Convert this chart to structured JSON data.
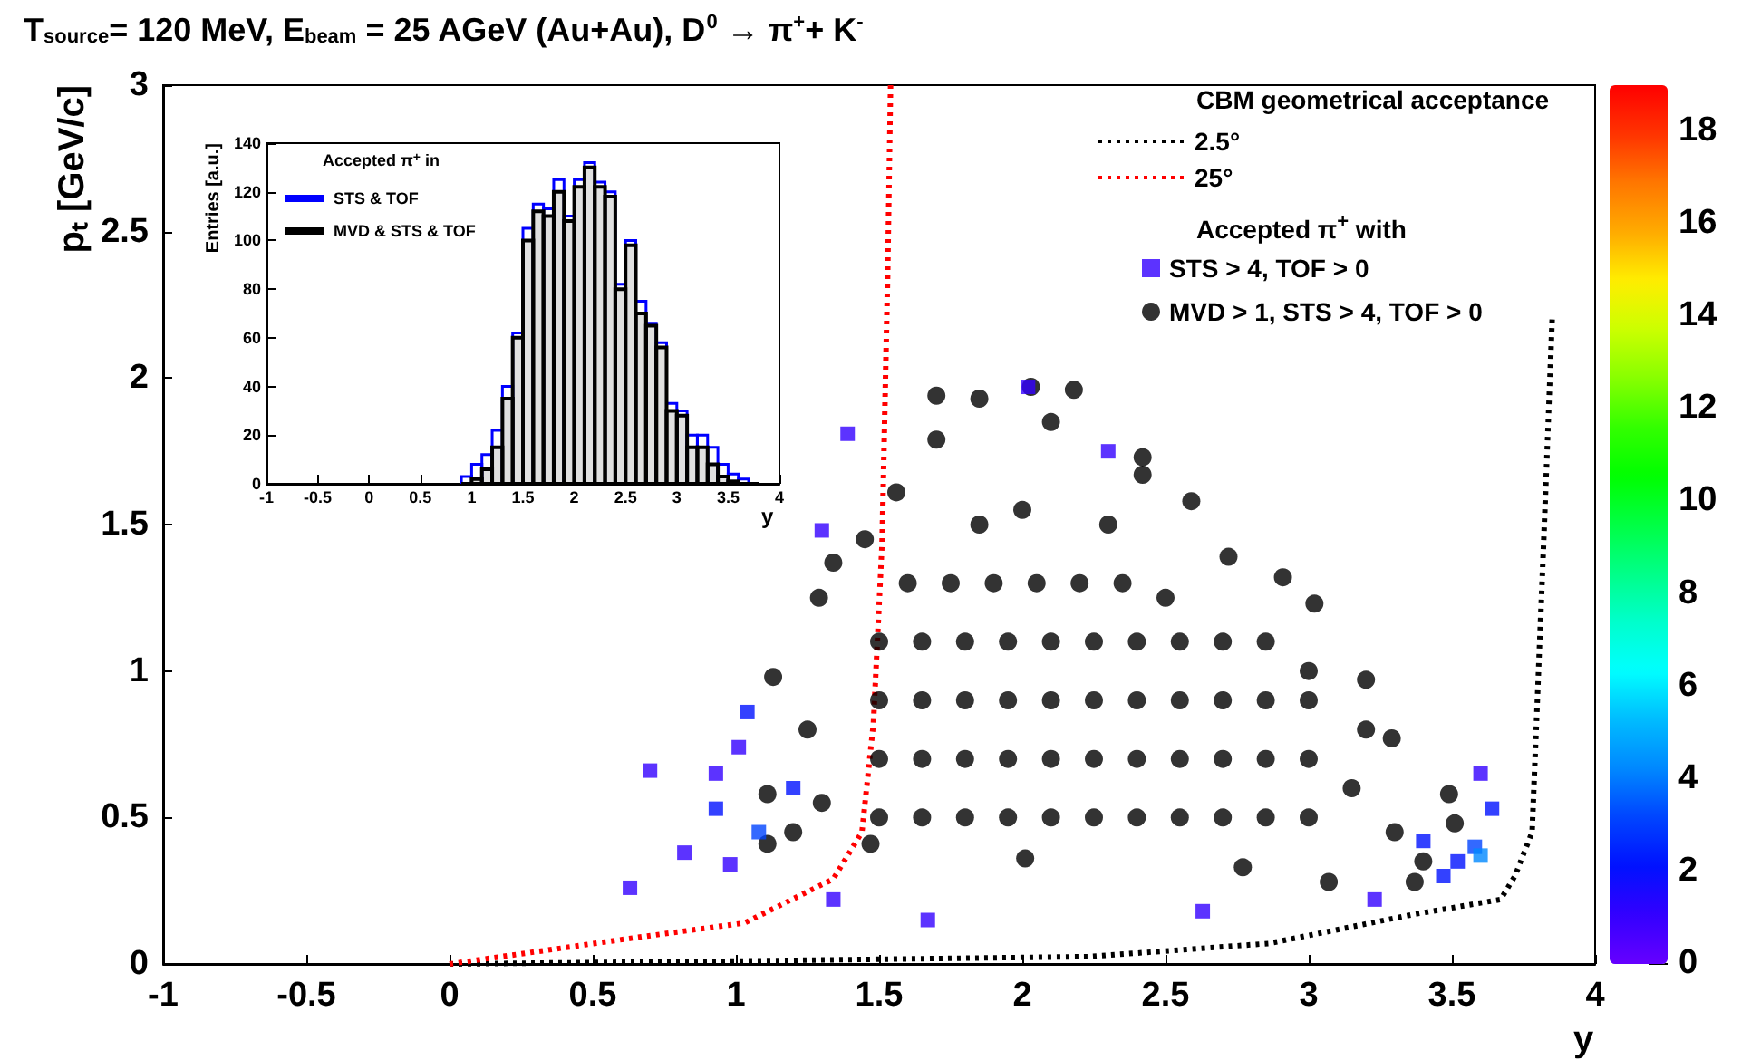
{
  "chart_data": [
    {
      "type": "scatter",
      "title": "T$_{source}$= 120 MeV, E$_{beam}$ = 25 AGeV (Au+Au), D$^{0}$ → π$^{+}$+ K$^{-}$",
      "xlabel": "y",
      "ylabel": "pₜ [GeV/c]",
      "legend_title": "CBM geometrical acceptance",
      "annotations": [
        "Accepted π$^{+}$ with"
      ],
      "legend": "top right",
      "xlim": [
        -1,
        4
      ],
      "xticks": [
        -1,
        -0.5,
        0,
        0.5,
        1,
        1.5,
        2,
        2.5,
        3,
        3.5,
        4
      ],
      "ylim": [
        0,
        3
      ],
      "yticks": [
        0,
        0.5,
        1,
        1.5,
        2,
        2.5,
        3
      ],
      "clim": [
        0,
        19
      ],
      "cticks": [
        0,
        2,
        4,
        6,
        8,
        10,
        12,
        14,
        16,
        18
      ],
      "series": [
        {
          "name": "2.5°",
          "type": "line",
          "color": "#000000",
          "line_style": "dotted",
          "marker": "none",
          "x": [
            0,
            1,
            2.23,
            2.86,
            3.37,
            3.67,
            3.72,
            3.78,
            3.82,
            3.85
          ],
          "values": [
            0,
            0.01,
            0.025,
            0.07,
            0.17,
            0.22,
            0.3,
            0.45,
            1.43,
            2.2
          ]
        },
        {
          "name": "25°",
          "type": "line",
          "color": "#ff0000",
          "line_style": "dotted",
          "marker": "none",
          "x": [
            0,
            0.65,
            1.03,
            1.34,
            1.44,
            1.48,
            1.51,
            1.53,
            1.54
          ],
          "values": [
            0,
            0.09,
            0.14,
            0.29,
            0.45,
            0.82,
            1.43,
            2.36,
            3.0
          ]
        },
        {
          "name": "STS > 4, TOF > 0",
          "type": "scatter",
          "marker": "square",
          "x": [
            0.93,
            1.04,
            1.01,
            0.93,
            0.98,
            1.34,
            1.67,
            2.63,
            3.23,
            3.6,
            3.64,
            3.47,
            3.58,
            1.39,
            1.3,
            2.02,
            0.63,
            0.7,
            0.82,
            3.6,
            1.08,
            3.52,
            3.4,
            1.2,
            2.3
          ],
          "values": [
            0.65,
            0.86,
            0.74,
            0.53,
            0.34,
            0.22,
            0.15,
            0.18,
            0.22,
            0.65,
            0.53,
            0.3,
            0.4,
            1.81,
            1.48,
            1.97,
            0.26,
            0.66,
            0.38,
            0.37,
            0.45,
            0.35,
            0.42,
            0.6,
            1.75
          ],
          "colors": [
            "#3300ff",
            "#0011ff",
            "#3300ff",
            "#0011ff",
            "#3300ff",
            "#3300ff",
            "#3300ff",
            "#3300ff",
            "#3300ff",
            "#3300ff",
            "#0011ff",
            "#0011ff",
            "#0044ff",
            "#3300ff",
            "#3300ff",
            "#3300ff",
            "#3300ff",
            "#3300ff",
            "#3300ff",
            "#0088ff",
            "#0044ff",
            "#0011ff",
            "#0011ff",
            "#0011ff",
            "#3300ff"
          ]
        },
        {
          "name": "MVD > 1, STS > 4, TOF > 0",
          "type": "scatter",
          "marker": "circle",
          "color": "#000000",
          "x": [
            1.7,
            1.85,
            2.03,
            2.18,
            2.1,
            1.7,
            2.42,
            2.42,
            1.56,
            2.59,
            1.45,
            1.34,
            1.29,
            1.13,
            1.11,
            1.11,
            2.72,
            2.91,
            3.02,
            3.2,
            3.29,
            3.49,
            3.51,
            3.37,
            3.07,
            2.77,
            2.01,
            1.47,
            1.5,
            1.65,
            1.8,
            1.95,
            2.1,
            2.25,
            2.4,
            2.55,
            2.7,
            2.85,
            3.0,
            1.5,
            1.65,
            1.8,
            1.95,
            2.1,
            2.25,
            2.4,
            2.55,
            2.7,
            2.85,
            3.0,
            1.5,
            1.65,
            1.8,
            1.95,
            2.1,
            2.25,
            2.4,
            2.55,
            2.7,
            2.85,
            3.0,
            1.5,
            1.65,
            1.8,
            1.95,
            2.1,
            2.25,
            2.4,
            2.55,
            2.7,
            2.85,
            3.0,
            1.6,
            1.75,
            1.9,
            2.05,
            2.2,
            2.35,
            2.5,
            1.25,
            1.3,
            1.2,
            3.15,
            3.3,
            3.2,
            3.4,
            1.85,
            2.0,
            2.3
          ],
          "values": [
            1.94,
            1.93,
            1.97,
            1.96,
            1.85,
            1.79,
            1.73,
            1.67,
            1.61,
            1.58,
            1.45,
            1.37,
            1.25,
            0.98,
            0.58,
            0.41,
            1.39,
            1.32,
            1.23,
            0.97,
            0.77,
            0.58,
            0.48,
            0.28,
            0.28,
            0.33,
            0.36,
            0.41,
            0.5,
            0.5,
            0.5,
            0.5,
            0.5,
            0.5,
            0.5,
            0.5,
            0.5,
            0.5,
            0.5,
            0.7,
            0.7,
            0.7,
            0.7,
            0.7,
            0.7,
            0.7,
            0.7,
            0.7,
            0.7,
            0.7,
            0.9,
            0.9,
            0.9,
            0.9,
            0.9,
            0.9,
            0.9,
            0.9,
            0.9,
            0.9,
            0.9,
            1.1,
            1.1,
            1.1,
            1.1,
            1.1,
            1.1,
            1.1,
            1.1,
            1.1,
            1.1,
            1.0,
            1.3,
            1.3,
            1.3,
            1.3,
            1.3,
            1.3,
            1.25,
            0.8,
            0.55,
            0.45,
            0.6,
            0.45,
            0.8,
            0.35,
            1.5,
            1.55,
            1.5
          ]
        }
      ]
    },
    {
      "type": "histogram",
      "xlabel": "y",
      "ylabel": "Entries [a.u.]",
      "legend_title": "Accepted π$^{+}$ in",
      "legend": "top left",
      "xlim": [
        -1,
        4
      ],
      "xticks": [
        -1,
        -0.5,
        0,
        0.5,
        1,
        1.5,
        2,
        2.5,
        3,
        3.5,
        4
      ],
      "ylim": [
        0,
        140
      ],
      "yticks": [
        0,
        20,
        40,
        60,
        80,
        100,
        120,
        140
      ],
      "bins": [
        0.9,
        1.0,
        1.1,
        1.2,
        1.3,
        1.4,
        1.5,
        1.6,
        1.7,
        1.8,
        1.9,
        2.0,
        2.1,
        2.2,
        2.3,
        2.4,
        2.5,
        2.6,
        2.7,
        2.8,
        2.9,
        3.0,
        3.1,
        3.2,
        3.3,
        3.4,
        3.5,
        3.6,
        3.7,
        3.8
      ],
      "series": [
        {
          "name": "STS & TOF",
          "color": "#0000ff",
          "values": [
            3,
            8,
            12,
            22,
            40,
            62,
            105,
            115,
            113,
            125,
            110,
            125,
            132,
            124,
            120,
            82,
            100,
            75,
            66,
            58,
            33,
            30,
            20,
            20,
            15,
            8,
            4,
            2,
            0
          ]
        },
        {
          "name": "MVD & STS & TOF",
          "color": "#000000",
          "values": [
            0,
            2,
            6,
            15,
            35,
            60,
            100,
            112,
            110,
            120,
            108,
            122,
            130,
            122,
            118,
            80,
            98,
            70,
            65,
            56,
            30,
            28,
            15,
            15,
            8,
            3,
            1,
            0,
            0
          ]
        }
      ]
    }
  ]
}
